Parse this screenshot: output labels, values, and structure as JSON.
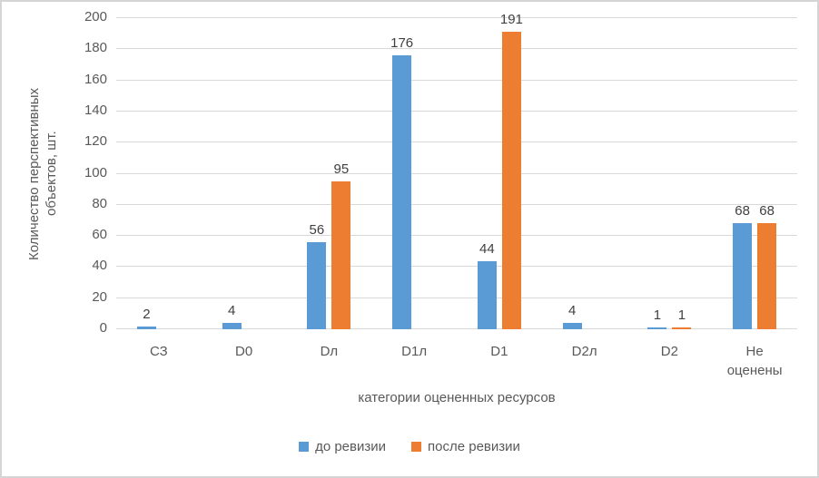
{
  "chart_data": {
    "type": "bar",
    "title": "",
    "xlabel": "категории оцененных ресурсов",
    "ylabel": "Количество перспективных\nобъектов, шт.",
    "categories": [
      "СЗ",
      "D0",
      "Dл",
      "D1л",
      "D1",
      "D2л",
      "D2",
      "Не\nоценены"
    ],
    "series": [
      {
        "name": "до ревизии",
        "color": "#5B9BD5",
        "values": [
          2,
          4,
          56,
          176,
          44,
          4,
          1,
          68
        ]
      },
      {
        "name": "после ревизии",
        "color": "#ED7D31",
        "values": [
          0,
          0,
          95,
          0,
          191,
          0,
          1,
          68
        ]
      }
    ],
    "ylim": [
      0,
      200
    ],
    "ytick_step": 20,
    "grid": true,
    "legend_position": "bottom",
    "value_labels": true
  },
  "colors": {
    "gridline": "#d9d9d9",
    "axis_text": "#595959",
    "value_label_text": "#404040",
    "background": "#ffffff",
    "border": "#d5d5d5"
  }
}
